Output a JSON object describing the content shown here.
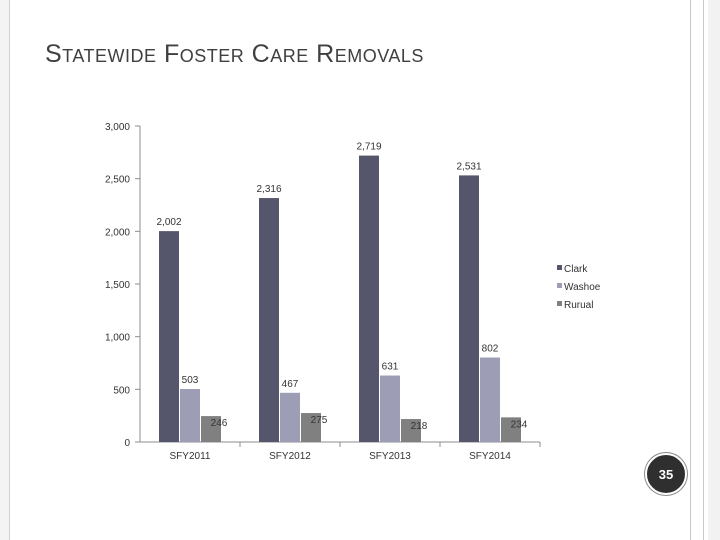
{
  "slide": {
    "title": "Statewide Foster Care Removals",
    "page_number": "35"
  },
  "colors": {
    "Clark": "#55556b",
    "Washoe": "#9d9db5",
    "Rurual": "#808080"
  },
  "chart_data": {
    "type": "bar",
    "title": "",
    "xlabel": "",
    "ylabel": "",
    "categories": [
      "SFY2011",
      "SFY2012",
      "SFY2013",
      "SFY2014"
    ],
    "series": [
      {
        "name": "Clark",
        "values": [
          2002,
          2316,
          2719,
          2531
        ],
        "labels": [
          "2,002",
          "2,316",
          "2,719",
          "2,531"
        ]
      },
      {
        "name": "Washoe",
        "values": [
          503,
          467,
          631,
          802
        ],
        "labels": [
          "503",
          "467",
          "631",
          "802"
        ]
      },
      {
        "name": "Rurual",
        "values": [
          246,
          275,
          218,
          234
        ],
        "labels": [
          "246",
          "275",
          "218",
          "234"
        ]
      }
    ],
    "ylim": [
      0,
      3000
    ],
    "yticks": [
      0,
      500,
      1000,
      1500,
      2000,
      2500,
      3000
    ],
    "ytick_labels": [
      "0",
      "500",
      "1,000",
      "1,500",
      "2,000",
      "2,500",
      "3,000"
    ],
    "grid": false,
    "legend_position": "right"
  }
}
